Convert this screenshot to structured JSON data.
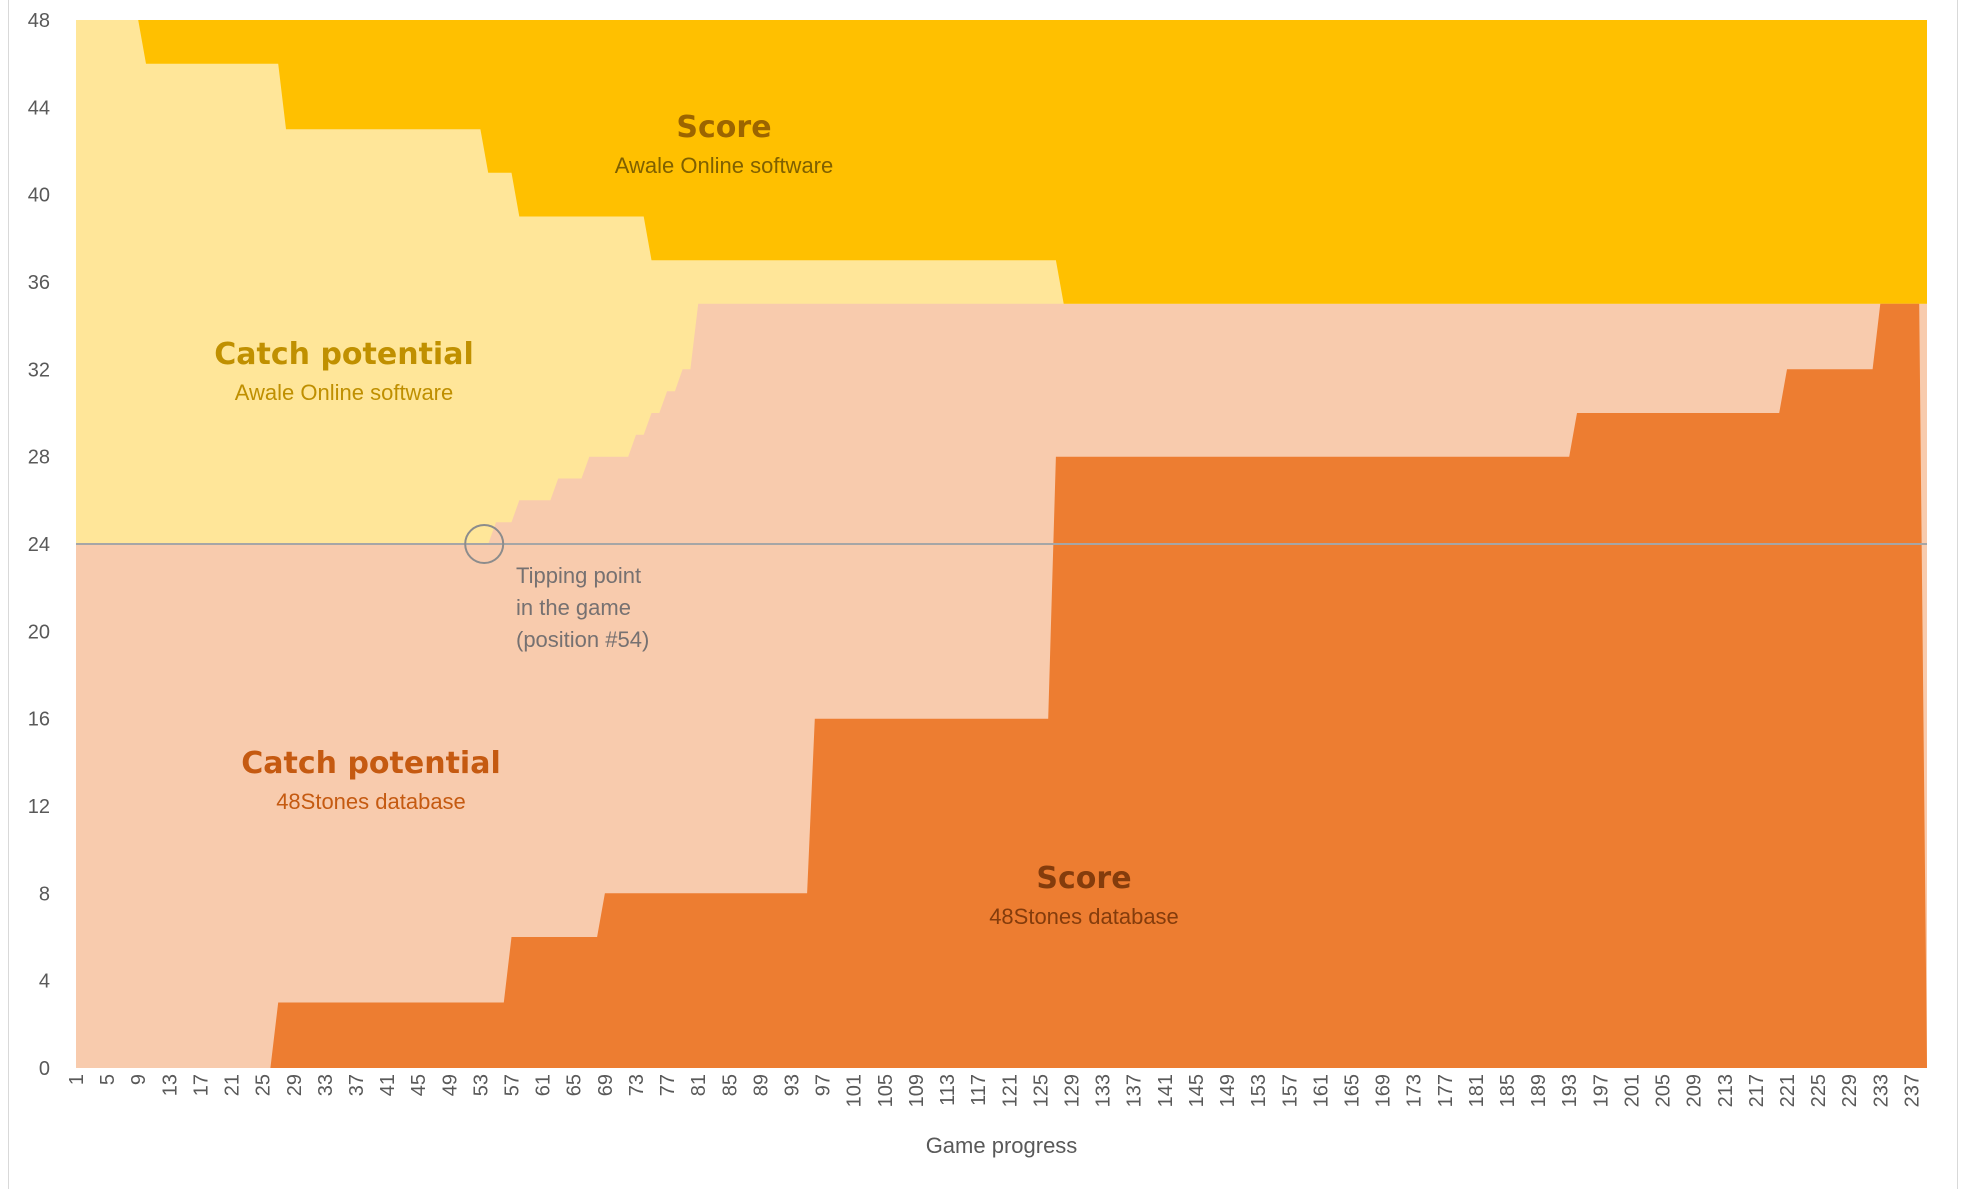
{
  "chart_data": {
    "type": "area",
    "xlabel": "Game progress",
    "ylabel": "",
    "ylim": [
      0,
      48
    ],
    "xlim": [
      1,
      239
    ],
    "yticks": [
      0,
      4,
      8,
      12,
      16,
      20,
      24,
      28,
      32,
      36,
      40,
      44,
      48
    ],
    "xtick_start": 1,
    "xtick_step": 4,
    "xtick_end": 237,
    "reference_line": {
      "y": 24,
      "color": "#a6a6a6"
    },
    "series": [
      {
        "key": "score_awale",
        "color": "#ffc000",
        "label_title": "Score",
        "label_sub": "Awale Online software",
        "description": "stacked from top (48 minus value)",
        "points": [
          [
            1,
            0
          ],
          [
            9,
            0
          ],
          [
            10,
            2
          ],
          [
            27,
            2
          ],
          [
            28,
            5
          ],
          [
            53,
            5
          ],
          [
            54,
            7
          ],
          [
            57,
            7
          ],
          [
            58,
            9
          ],
          [
            74,
            9
          ],
          [
            75,
            11
          ],
          [
            127,
            11
          ],
          [
            128,
            13
          ],
          [
            239,
            13
          ]
        ]
      },
      {
        "key": "catch_awale",
        "color": "#ffe699",
        "label_title": "Catch potential",
        "label_sub": "Awale Online software"
      },
      {
        "key": "catch_48stones",
        "color": "#f8cbad",
        "label_title": "Catch potential",
        "label_sub": "48Stones database",
        "description": "top boundary of lower region",
        "points": [
          [
            1,
            24
          ],
          [
            54,
            24
          ],
          [
            55,
            25
          ],
          [
            57,
            25
          ],
          [
            58,
            26
          ],
          [
            62,
            26
          ],
          [
            63,
            27
          ],
          [
            66,
            27
          ],
          [
            67,
            28
          ],
          [
            72,
            28
          ],
          [
            73,
            29
          ],
          [
            74,
            29
          ],
          [
            75,
            30
          ],
          [
            76,
            30
          ],
          [
            77,
            31
          ],
          [
            78,
            31
          ],
          [
            79,
            32
          ],
          [
            80,
            32
          ],
          [
            81,
            35
          ],
          [
            239,
            35
          ]
        ]
      },
      {
        "key": "score_48stones",
        "color": "#ed7d31",
        "label_title": "Score",
        "label_sub": "48Stones database",
        "points": [
          [
            1,
            0
          ],
          [
            26,
            0
          ],
          [
            27,
            3
          ],
          [
            56,
            3
          ],
          [
            57,
            6
          ],
          [
            68,
            6
          ],
          [
            69,
            8
          ],
          [
            95,
            8
          ],
          [
            96,
            16
          ],
          [
            126,
            16
          ],
          [
            127,
            28
          ],
          [
            193,
            28
          ],
          [
            194,
            30
          ],
          [
            220,
            30
          ],
          [
            221,
            32
          ],
          [
            232,
            32
          ],
          [
            233,
            35
          ],
          [
            238,
            35
          ],
          [
            239,
            0
          ]
        ]
      }
    ],
    "annotation": {
      "lines": [
        "Tipping point",
        "in the game",
        "(position #54)"
      ],
      "x": 54,
      "y": 24
    }
  }
}
